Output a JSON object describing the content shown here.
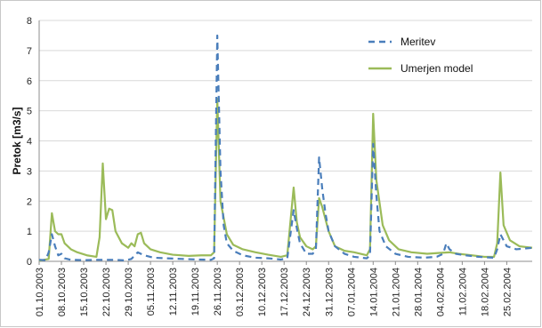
{
  "chart_data": {
    "type": "line",
    "title": "",
    "xlabel": "",
    "ylabel": "Pretok [m3/s]",
    "ylim": [
      0,
      8
    ],
    "yticks": [
      0,
      1,
      2,
      3,
      4,
      5,
      6,
      7,
      8
    ],
    "xlim": [
      "2003-10-01",
      "2004-03-04"
    ],
    "xtick_labels": [
      "01.10.2003",
      "08.10.2003",
      "15.10.2003",
      "22.10.2003",
      "29.10.2003",
      "05.11.2003",
      "12.11.2003",
      "19.11.2003",
      "26.11.2003",
      "03.12.2003",
      "10.12.2003",
      "17.12.2003",
      "24.12.2003",
      "31.12.2003",
      "07.01.2004",
      "14.01.2004",
      "21.01.2004",
      "28.01.2004",
      "04.02.2004",
      "11.02.2004",
      "18.02.2004",
      "25.02.2004"
    ],
    "grid": "horizontal",
    "legend_position": "top-right",
    "series": [
      {
        "name": "Meritev",
        "color": "#4A7EBB",
        "style": "dashed",
        "points": [
          [
            "2003-10-01",
            0.05
          ],
          [
            "2003-10-03",
            0.04
          ],
          [
            "2003-10-04",
            0.3
          ],
          [
            "2003-10-05",
            0.9
          ],
          [
            "2003-10-06",
            0.5
          ],
          [
            "2003-10-07",
            0.2
          ],
          [
            "2003-10-08",
            0.25
          ],
          [
            "2003-10-09",
            0.1
          ],
          [
            "2003-10-11",
            0.05
          ],
          [
            "2003-10-15",
            0.04
          ],
          [
            "2003-10-19",
            0.05
          ],
          [
            "2003-10-25",
            0.05
          ],
          [
            "2003-10-28",
            0.03
          ],
          [
            "2003-10-30",
            0.08
          ],
          [
            "2003-11-01",
            0.3
          ],
          [
            "2003-11-03",
            0.2
          ],
          [
            "2003-11-06",
            0.12
          ],
          [
            "2003-11-10",
            0.1
          ],
          [
            "2003-11-15",
            0.08
          ],
          [
            "2003-11-20",
            0.06
          ],
          [
            "2003-11-24",
            0.05
          ],
          [
            "2003-11-25",
            0.1
          ],
          [
            "2003-11-26",
            7.5
          ],
          [
            "2003-11-27",
            3.0
          ],
          [
            "2003-11-28",
            1.2
          ],
          [
            "2003-11-29",
            0.6
          ],
          [
            "2003-12-01",
            0.35
          ],
          [
            "2003-12-04",
            0.2
          ],
          [
            "2003-12-08",
            0.12
          ],
          [
            "2003-12-12",
            0.1
          ],
          [
            "2003-12-16",
            0.06
          ],
          [
            "2003-12-18",
            0.1
          ],
          [
            "2003-12-20",
            1.7
          ],
          [
            "2003-12-21",
            1.1
          ],
          [
            "2003-12-22",
            0.6
          ],
          [
            "2003-12-24",
            0.25
          ],
          [
            "2003-12-26",
            0.25
          ],
          [
            "2003-12-27",
            0.4
          ],
          [
            "2003-12-28",
            3.45
          ],
          [
            "2003-12-29",
            2.4
          ],
          [
            "2003-12-30",
            1.6
          ],
          [
            "2003-12-31",
            1.0
          ],
          [
            "2004-01-02",
            0.5
          ],
          [
            "2004-01-05",
            0.25
          ],
          [
            "2004-01-08",
            0.15
          ],
          [
            "2004-01-12",
            0.1
          ],
          [
            "2004-01-13",
            0.2
          ],
          [
            "2004-01-14",
            3.9
          ],
          [
            "2004-01-15",
            2.2
          ],
          [
            "2004-01-16",
            1.0
          ],
          [
            "2004-01-18",
            0.5
          ],
          [
            "2004-01-21",
            0.25
          ],
          [
            "2004-01-25",
            0.15
          ],
          [
            "2004-01-30",
            0.12
          ],
          [
            "2004-02-03",
            0.15
          ],
          [
            "2004-02-05",
            0.25
          ],
          [
            "2004-02-06",
            0.6
          ],
          [
            "2004-02-07",
            0.4
          ],
          [
            "2004-02-09",
            0.25
          ],
          [
            "2004-02-12",
            0.2
          ],
          [
            "2004-02-16",
            0.15
          ],
          [
            "2004-02-21",
            0.12
          ],
          [
            "2004-02-22",
            0.4
          ],
          [
            "2004-02-23",
            0.9
          ],
          [
            "2004-02-24",
            0.7
          ],
          [
            "2004-02-25",
            0.5
          ],
          [
            "2004-02-28",
            0.4
          ],
          [
            "2004-03-04",
            0.45
          ]
        ]
      },
      {
        "name": "Umerjen model",
        "color": "#9BBB59",
        "style": "solid",
        "points": [
          [
            "2003-10-01",
            0.02
          ],
          [
            "2003-10-04",
            0.08
          ],
          [
            "2003-10-05",
            1.6
          ],
          [
            "2003-10-06",
            1.0
          ],
          [
            "2003-10-07",
            0.9
          ],
          [
            "2003-10-08",
            0.9
          ],
          [
            "2003-10-09",
            0.6
          ],
          [
            "2003-10-11",
            0.4
          ],
          [
            "2003-10-13",
            0.3
          ],
          [
            "2003-10-16",
            0.2
          ],
          [
            "2003-10-19",
            0.15
          ],
          [
            "2003-10-20",
            0.8
          ],
          [
            "2003-10-21",
            3.25
          ],
          [
            "2003-10-22",
            1.4
          ],
          [
            "2003-10-23",
            1.75
          ],
          [
            "2003-10-24",
            1.7
          ],
          [
            "2003-10-25",
            1.0
          ],
          [
            "2003-10-27",
            0.6
          ],
          [
            "2003-10-29",
            0.45
          ],
          [
            "2003-10-30",
            0.6
          ],
          [
            "2003-10-31",
            0.5
          ],
          [
            "2003-11-01",
            0.9
          ],
          [
            "2003-11-02",
            0.95
          ],
          [
            "2003-11-03",
            0.6
          ],
          [
            "2003-11-05",
            0.4
          ],
          [
            "2003-11-08",
            0.3
          ],
          [
            "2003-11-12",
            0.22
          ],
          [
            "2003-11-17",
            0.18
          ],
          [
            "2003-11-21",
            0.2
          ],
          [
            "2003-11-24",
            0.2
          ],
          [
            "2003-11-25",
            0.3
          ],
          [
            "2003-11-26",
            5.4
          ],
          [
            "2003-11-27",
            2.0
          ],
          [
            "2003-11-29",
            0.9
          ],
          [
            "2003-12-01",
            0.55
          ],
          [
            "2003-12-04",
            0.4
          ],
          [
            "2003-12-08",
            0.3
          ],
          [
            "2003-12-12",
            0.22
          ],
          [
            "2003-12-16",
            0.15
          ],
          [
            "2003-12-18",
            0.2
          ],
          [
            "2003-12-20",
            2.45
          ],
          [
            "2003-12-21",
            1.3
          ],
          [
            "2003-12-22",
            0.8
          ],
          [
            "2003-12-24",
            0.5
          ],
          [
            "2003-12-26",
            0.4
          ],
          [
            "2003-12-27",
            0.5
          ],
          [
            "2003-12-28",
            2.1
          ],
          [
            "2003-12-29",
            1.8
          ],
          [
            "2003-12-31",
            1.0
          ],
          [
            "2004-01-02",
            0.5
          ],
          [
            "2004-01-05",
            0.35
          ],
          [
            "2004-01-08",
            0.3
          ],
          [
            "2004-01-12",
            0.2
          ],
          [
            "2004-01-13",
            0.4
          ],
          [
            "2004-01-14",
            4.9
          ],
          [
            "2004-01-15",
            2.7
          ],
          [
            "2004-01-17",
            1.2
          ],
          [
            "2004-01-19",
            0.7
          ],
          [
            "2004-01-22",
            0.4
          ],
          [
            "2004-01-26",
            0.3
          ],
          [
            "2004-01-31",
            0.25
          ],
          [
            "2004-02-04",
            0.28
          ],
          [
            "2004-02-07",
            0.3
          ],
          [
            "2004-02-10",
            0.25
          ],
          [
            "2004-02-14",
            0.2
          ],
          [
            "2004-02-18",
            0.15
          ],
          [
            "2004-02-21",
            0.15
          ],
          [
            "2004-02-22",
            0.6
          ],
          [
            "2004-02-23",
            2.95
          ],
          [
            "2004-02-24",
            1.2
          ],
          [
            "2004-02-26",
            0.7
          ],
          [
            "2004-02-29",
            0.5
          ],
          [
            "2004-03-04",
            0.45
          ]
        ]
      }
    ]
  }
}
